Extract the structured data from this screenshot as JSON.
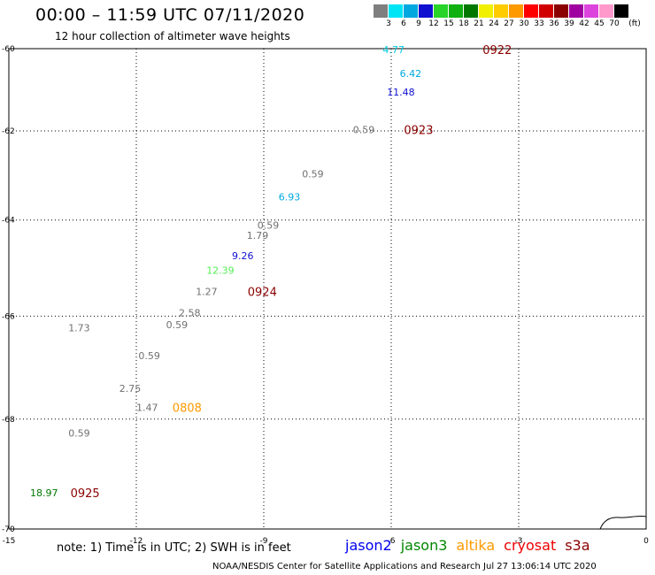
{
  "header": {
    "title": "00:00 – 11:59 UTC 07/11/2020",
    "subtitle": "12 hour collection of altimeter wave heights"
  },
  "color_scale": {
    "unit_label": "(ft)",
    "ticks": [
      "3",
      "6",
      "9",
      "12",
      "15",
      "18",
      "21",
      "24",
      "27",
      "30",
      "33",
      "36",
      "39",
      "42",
      "45",
      "70"
    ],
    "colors": [
      "#7f7f7f",
      "#00e5f5",
      "#00a8e0",
      "#1010d0",
      "#28d428",
      "#10b010",
      "#007800",
      "#f0f000",
      "#ffcc00",
      "#ff9900",
      "#ff0000",
      "#d00000",
      "#8b0000",
      "#a000a0",
      "#dd44dd",
      "#ff99cc",
      "#000000"
    ]
  },
  "map": {
    "lon_range": [
      -15,
      0
    ],
    "lat_range": [
      -70,
      -60
    ],
    "x_ticks": [
      {
        "value": -15,
        "label": "-15"
      },
      {
        "value": -12,
        "label": "-12"
      },
      {
        "value": -9,
        "label": "-9"
      },
      {
        "value": -6,
        "label": "-6"
      },
      {
        "value": -3,
        "label": "-3"
      },
      {
        "value": 0,
        "label": "0"
      }
    ],
    "y_ticks": [
      {
        "value": -60,
        "label": "-60"
      },
      {
        "value": -62,
        "label": "-62"
      },
      {
        "value": -64,
        "label": "-64"
      },
      {
        "value": -66,
        "label": "-66"
      },
      {
        "value": -68,
        "label": "-68"
      },
      {
        "value": -70,
        "label": "-70"
      }
    ],
    "wave_labels": [
      {
        "text": "4.77",
        "lon": -6.2,
        "lat": -60.02,
        "color": "#00cce0"
      },
      {
        "text": "6.42",
        "lon": -5.8,
        "lat": -60.62,
        "color": "#00a8e0"
      },
      {
        "text": "11.48",
        "lon": -6.1,
        "lat": -61.08,
        "color": "#1010d0"
      },
      {
        "text": "0.59",
        "lon": -6.9,
        "lat": -61.97,
        "color": "#707070"
      },
      {
        "text": "0.59",
        "lon": -8.1,
        "lat": -62.98,
        "color": "#707070"
      },
      {
        "text": "6.93",
        "lon": -8.65,
        "lat": -63.49,
        "color": "#00a8e0"
      },
      {
        "text": "0.59",
        "lon": -9.15,
        "lat": -64.11,
        "color": "#707070"
      },
      {
        "text": "1.79",
        "lon": -9.4,
        "lat": -64.33,
        "color": "#707070"
      },
      {
        "text": "9.26",
        "lon": -9.75,
        "lat": -64.76,
        "color": "#1010d0"
      },
      {
        "text": "12.39",
        "lon": -10.35,
        "lat": -65.06,
        "color": "#55ee55"
      },
      {
        "text": "1.27",
        "lon": -10.6,
        "lat": -65.5,
        "color": "#707070"
      },
      {
        "text": "2.58",
        "lon": -11.0,
        "lat": -65.93,
        "color": "#707070"
      },
      {
        "text": "0.59",
        "lon": -11.3,
        "lat": -66.17,
        "color": "#707070"
      },
      {
        "text": "1.73",
        "lon": -13.6,
        "lat": -66.23,
        "color": "#707070"
      },
      {
        "text": "0.59",
        "lon": -11.95,
        "lat": -66.78,
        "color": "#707070"
      },
      {
        "text": "2.75",
        "lon": -12.4,
        "lat": -67.42,
        "color": "#707070"
      },
      {
        "text": "1.47",
        "lon": -12.0,
        "lat": -67.78,
        "color": "#707070"
      },
      {
        "text": "0.59",
        "lon": -13.6,
        "lat": -68.26,
        "color": "#707070"
      },
      {
        "text": "18.97",
        "lon": -14.5,
        "lat": -69.35,
        "color": "#007800"
      }
    ],
    "time_labels": [
      {
        "text": "0922",
        "lon": -3.85,
        "lat": -60.02,
        "color": "#8b0000"
      },
      {
        "text": "0923",
        "lon": -5.7,
        "lat": -61.97,
        "color": "#8b0000"
      },
      {
        "text": "0924",
        "lon": -9.38,
        "lat": -65.5,
        "color": "#8b0000"
      },
      {
        "text": "0808",
        "lon": -11.15,
        "lat": -67.78,
        "color": "#ff9900"
      },
      {
        "text": "0925",
        "lon": -13.55,
        "lat": -69.35,
        "color": "#8b0000"
      }
    ]
  },
  "footer": {
    "note": "note: 1) Time is in UTC; 2) SWH is in feet",
    "satellites": [
      {
        "name": "jason2",
        "color": "#0000ee"
      },
      {
        "name": "jason3",
        "color": "#008800"
      },
      {
        "name": "altika",
        "color": "#ff9900"
      },
      {
        "name": "cryosat",
        "color": "#ee0000"
      },
      {
        "name": "s3a",
        "color": "#8b0000"
      }
    ],
    "credit": "NOAA/NESDIS Center for Satellite Applications and Research    Jul 27 13:06:14 UTC 2020"
  }
}
